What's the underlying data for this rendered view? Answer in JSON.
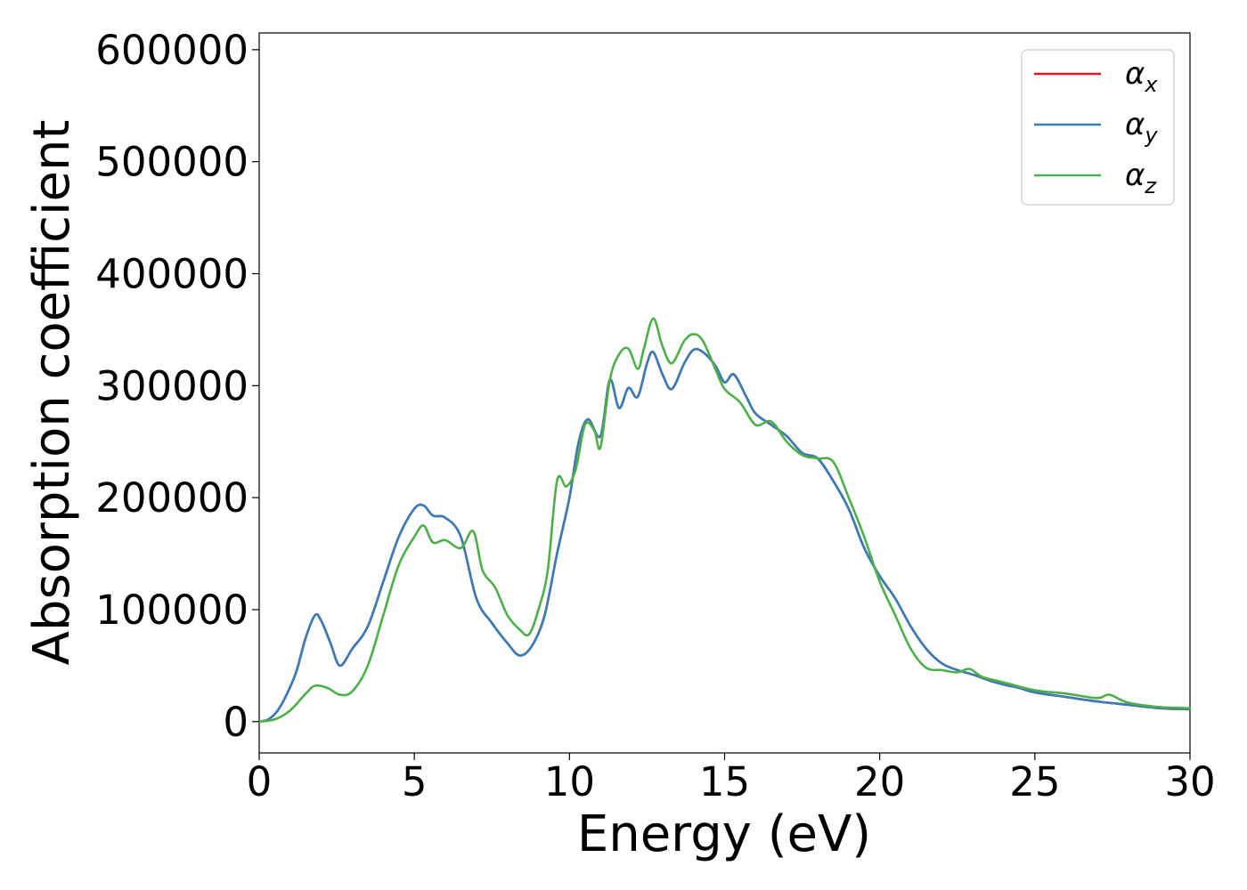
{
  "chart_data": {
    "type": "line",
    "title": "",
    "xlabel": "Energy (eV)",
    "ylabel": "Absorption coefficient",
    "xlim": [
      0,
      30
    ],
    "ylim": [
      -28000,
      615000
    ],
    "xticks": [
      0,
      5,
      10,
      15,
      20,
      25,
      30
    ],
    "yticks": [
      0,
      100000,
      200000,
      300000,
      400000,
      500000,
      600000
    ],
    "grid": false,
    "legend_position": "top-right",
    "series": [
      {
        "name": "α_x",
        "label_symbol": "α",
        "label_sub": "x",
        "color": "#e41a1c",
        "x": [
          0,
          0.3,
          0.6,
          0.9,
          1.2,
          1.5,
          1.8,
          2.0,
          2.3,
          2.6,
          3.0,
          3.5,
          4.0,
          4.5,
          5.0,
          5.3,
          5.6,
          6.0,
          6.5,
          7.0,
          7.5,
          8.0,
          8.4,
          8.8,
          9.2,
          9.6,
          10.0,
          10.3,
          10.6,
          11.0,
          11.3,
          11.6,
          11.9,
          12.2,
          12.5,
          12.7,
          13.0,
          13.3,
          13.7,
          14.0,
          14.3,
          14.7,
          15.0,
          15.3,
          15.7,
          16.0,
          16.5,
          17.0,
          17.5,
          18.0,
          18.5,
          19.0,
          19.5,
          20.0,
          20.5,
          21.0,
          21.5,
          22.0,
          22.5,
          23.0,
          23.5,
          24.0,
          24.5,
          25.0,
          26.0,
          27.0,
          28.0,
          29.0,
          30.0
        ],
        "values": [
          0,
          2000,
          10000,
          25000,
          45000,
          75000,
          95000,
          90000,
          70000,
          50000,
          65000,
          85000,
          125000,
          165000,
          190000,
          193000,
          184000,
          182000,
          165000,
          110000,
          88000,
          70000,
          59000,
          68000,
          95000,
          150000,
          200000,
          250000,
          270000,
          255000,
          305000,
          280000,
          298000,
          290000,
          320000,
          330000,
          310000,
          297000,
          320000,
          332000,
          330000,
          318000,
          303000,
          310000,
          290000,
          275000,
          265000,
          255000,
          240000,
          235000,
          215000,
          190000,
          155000,
          130000,
          110000,
          85000,
          65000,
          52000,
          46000,
          42000,
          37000,
          33000,
          30000,
          26000,
          22000,
          18000,
          15000,
          12000,
          11000
        ]
      },
      {
        "name": "α_y",
        "label_symbol": "α",
        "label_sub": "y",
        "color": "#377eb8",
        "x": [
          0,
          0.3,
          0.6,
          0.9,
          1.2,
          1.5,
          1.8,
          2.0,
          2.3,
          2.6,
          3.0,
          3.5,
          4.0,
          4.5,
          5.0,
          5.3,
          5.6,
          6.0,
          6.5,
          7.0,
          7.5,
          8.0,
          8.4,
          8.8,
          9.2,
          9.6,
          10.0,
          10.3,
          10.6,
          11.0,
          11.3,
          11.6,
          11.9,
          12.2,
          12.5,
          12.7,
          13.0,
          13.3,
          13.7,
          14.0,
          14.3,
          14.7,
          15.0,
          15.3,
          15.7,
          16.0,
          16.5,
          17.0,
          17.5,
          18.0,
          18.5,
          19.0,
          19.5,
          20.0,
          20.5,
          21.0,
          21.5,
          22.0,
          22.5,
          23.0,
          23.5,
          24.0,
          24.5,
          25.0,
          26.0,
          27.0,
          28.0,
          29.0,
          30.0
        ],
        "values": [
          0,
          2000,
          10000,
          25000,
          45000,
          75000,
          95000,
          90000,
          70000,
          50000,
          65000,
          85000,
          125000,
          165000,
          190000,
          193000,
          184000,
          182000,
          165000,
          110000,
          88000,
          70000,
          59000,
          68000,
          95000,
          150000,
          200000,
          250000,
          270000,
          255000,
          305000,
          280000,
          298000,
          290000,
          320000,
          330000,
          310000,
          297000,
          320000,
          332000,
          330000,
          318000,
          303000,
          310000,
          290000,
          275000,
          265000,
          255000,
          240000,
          235000,
          215000,
          190000,
          155000,
          130000,
          110000,
          85000,
          65000,
          52000,
          46000,
          42000,
          37000,
          33000,
          30000,
          26000,
          22000,
          18000,
          15000,
          12000,
          11000
        ]
      },
      {
        "name": "α_z",
        "label_symbol": "α",
        "label_sub": "z",
        "color": "#4daf4a",
        "x": [
          0,
          0.5,
          1.0,
          1.5,
          1.8,
          2.2,
          2.6,
          3.0,
          3.5,
          4.0,
          4.5,
          5.0,
          5.3,
          5.6,
          6.0,
          6.5,
          6.9,
          7.2,
          7.6,
          8.0,
          8.4,
          8.7,
          9.0,
          9.3,
          9.6,
          9.9,
          10.2,
          10.5,
          10.8,
          11.0,
          11.3,
          11.6,
          11.9,
          12.2,
          12.4,
          12.7,
          13.0,
          13.3,
          13.7,
          14.0,
          14.3,
          14.7,
          15.0,
          15.5,
          16.0,
          16.5,
          17.0,
          17.5,
          18.0,
          18.5,
          19.0,
          19.5,
          20.0,
          20.5,
          21.0,
          21.5,
          22.0,
          22.5,
          22.9,
          23.3,
          24.0,
          25.0,
          26.0,
          27.0,
          27.4,
          28.0,
          29.0,
          30.0
        ],
        "values": [
          0,
          2000,
          10000,
          25000,
          32000,
          30000,
          24000,
          27000,
          50000,
          95000,
          140000,
          165000,
          175000,
          160000,
          162000,
          155000,
          170000,
          135000,
          120000,
          95000,
          82000,
          78000,
          100000,
          135000,
          215000,
          210000,
          225000,
          265000,
          260000,
          245000,
          305000,
          328000,
          333000,
          315000,
          333000,
          360000,
          335000,
          320000,
          340000,
          346000,
          340000,
          315000,
          297000,
          285000,
          265000,
          268000,
          250000,
          238000,
          235000,
          232000,
          200000,
          165000,
          125000,
          95000,
          65000,
          48000,
          46000,
          44000,
          47000,
          40000,
          35000,
          28000,
          25000,
          21000,
          24000,
          17000,
          13000,
          12000
        ]
      }
    ]
  }
}
